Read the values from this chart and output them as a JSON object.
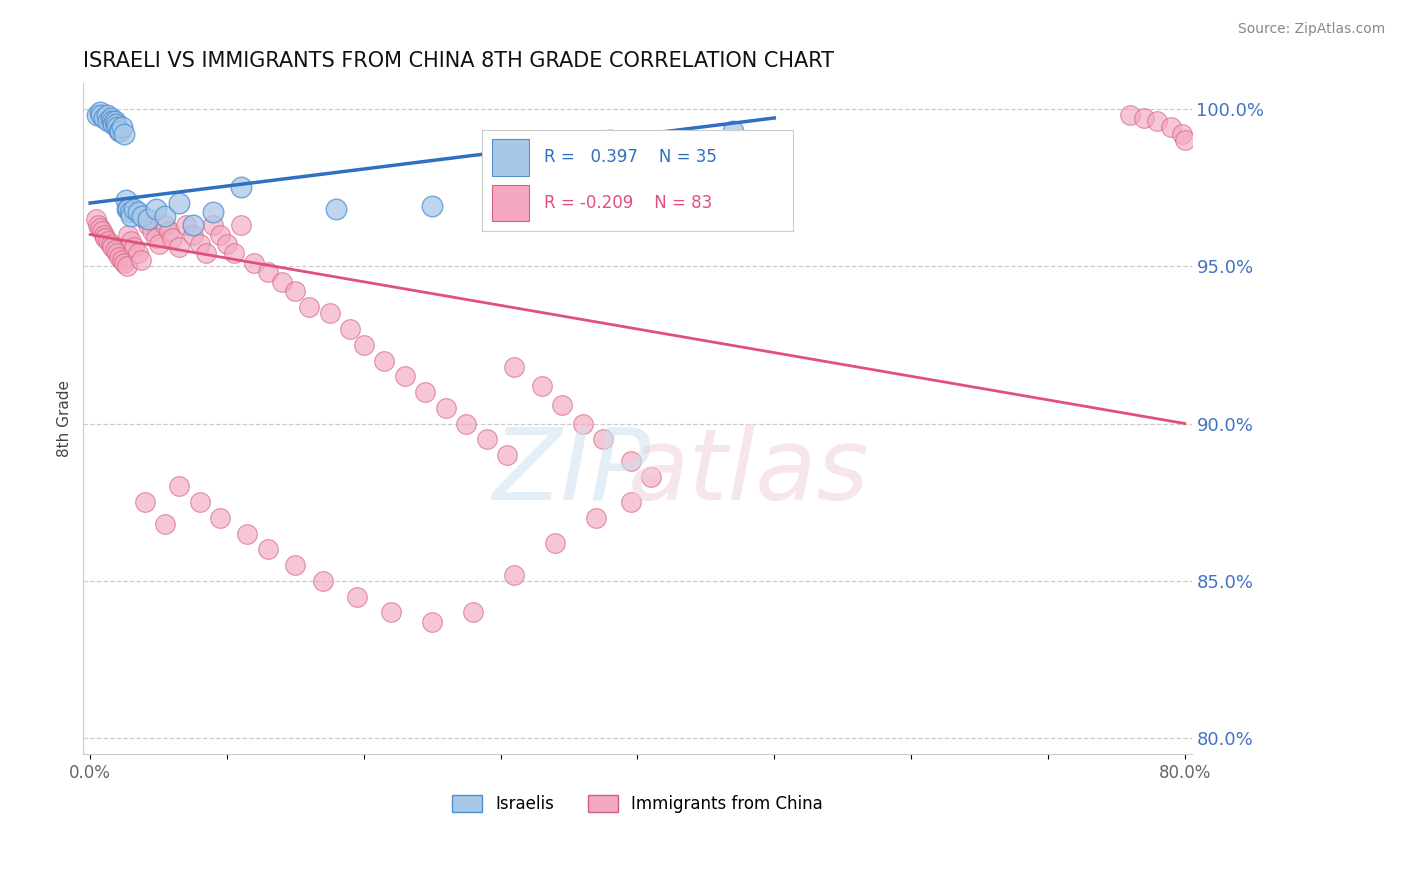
{
  "title": "ISRAELI VS IMMIGRANTS FROM CHINA 8TH GRADE CORRELATION CHART",
  "source": "Source: ZipAtlas.com",
  "ylabel": "8th Grade",
  "xlim": [
    -0.005,
    0.805
  ],
  "ylim": [
    0.795,
    1.008
  ],
  "xticks": [
    0.0,
    0.1,
    0.2,
    0.3,
    0.4,
    0.5,
    0.6,
    0.7,
    0.8
  ],
  "xticklabels": [
    "0.0%",
    "",
    "",
    "",
    "",
    "",
    "",
    "",
    "80.0%"
  ],
  "yticks_right": [
    1.0,
    0.95,
    0.9,
    0.85,
    0.8
  ],
  "ytick_right_labels": [
    "100.0%",
    "95.0%",
    "90.0%",
    "85.0%",
    "80.0%"
  ],
  "legend_label_blue": "Israelis",
  "legend_label_pink": "Immigrants from China",
  "blue_color": "#A8C8E8",
  "pink_color": "#F4A8C0",
  "blue_line_color": "#3070C0",
  "pink_line_color": "#E0507A",
  "blue_edge_color": "#5090D0",
  "pink_edge_color": "#D06080",
  "blue_x": [
    0.005,
    0.007,
    0.008,
    0.01,
    0.012,
    0.013,
    0.015,
    0.016,
    0.017,
    0.018,
    0.019,
    0.02,
    0.021,
    0.022,
    0.023,
    0.025,
    0.026,
    0.027,
    0.028,
    0.029,
    0.03,
    0.032,
    0.035,
    0.038,
    0.042,
    0.048,
    0.055,
    0.065,
    0.075,
    0.09,
    0.11,
    0.18,
    0.25,
    0.38,
    0.47
  ],
  "blue_y": [
    0.998,
    0.999,
    0.998,
    0.997,
    0.998,
    0.996,
    0.997,
    0.996,
    0.995,
    0.996,
    0.995,
    0.994,
    0.993,
    0.993,
    0.994,
    0.992,
    0.971,
    0.968,
    0.968,
    0.967,
    0.966,
    0.968,
    0.967,
    0.966,
    0.965,
    0.968,
    0.966,
    0.97,
    0.963,
    0.967,
    0.975,
    0.968,
    0.969,
    0.99,
    0.993
  ],
  "pink_x": [
    0.004,
    0.006,
    0.007,
    0.009,
    0.01,
    0.011,
    0.013,
    0.015,
    0.016,
    0.018,
    0.02,
    0.021,
    0.023,
    0.025,
    0.027,
    0.028,
    0.03,
    0.032,
    0.035,
    0.037,
    0.04,
    0.042,
    0.045,
    0.048,
    0.05,
    0.055,
    0.058,
    0.06,
    0.065,
    0.07,
    0.075,
    0.08,
    0.085,
    0.09,
    0.095,
    0.1,
    0.105,
    0.11,
    0.12,
    0.13,
    0.14,
    0.15,
    0.16,
    0.175,
    0.19,
    0.2,
    0.215,
    0.23,
    0.245,
    0.26,
    0.275,
    0.29,
    0.305,
    0.31,
    0.33,
    0.345,
    0.36,
    0.375,
    0.395,
    0.41,
    0.04,
    0.055,
    0.065,
    0.08,
    0.095,
    0.115,
    0.13,
    0.15,
    0.17,
    0.195,
    0.22,
    0.25,
    0.28,
    0.31,
    0.34,
    0.37,
    0.395,
    0.76,
    0.77,
    0.78,
    0.79,
    0.798,
    0.8
  ],
  "pink_y": [
    0.965,
    0.963,
    0.962,
    0.961,
    0.96,
    0.959,
    0.958,
    0.957,
    0.956,
    0.955,
    0.954,
    0.953,
    0.952,
    0.951,
    0.95,
    0.96,
    0.958,
    0.956,
    0.954,
    0.952,
    0.965,
    0.963,
    0.961,
    0.959,
    0.957,
    0.963,
    0.961,
    0.959,
    0.956,
    0.963,
    0.96,
    0.957,
    0.954,
    0.963,
    0.96,
    0.957,
    0.954,
    0.963,
    0.951,
    0.948,
    0.945,
    0.942,
    0.937,
    0.935,
    0.93,
    0.925,
    0.92,
    0.915,
    0.91,
    0.905,
    0.9,
    0.895,
    0.89,
    0.918,
    0.912,
    0.906,
    0.9,
    0.895,
    0.888,
    0.883,
    0.875,
    0.868,
    0.88,
    0.875,
    0.87,
    0.865,
    0.86,
    0.855,
    0.85,
    0.845,
    0.84,
    0.837,
    0.84,
    0.852,
    0.862,
    0.87,
    0.875,
    0.998,
    0.997,
    0.996,
    0.994,
    0.992,
    0.99
  ]
}
